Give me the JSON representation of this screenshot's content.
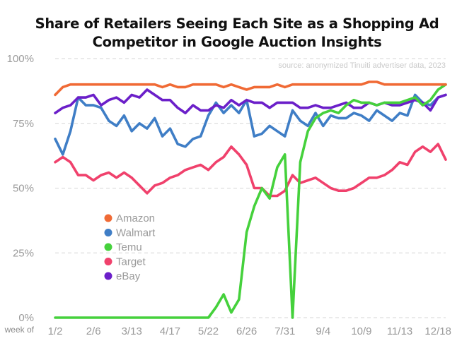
{
  "chart_data": {
    "type": "line",
    "title_line1": "Share of Retailers Seeing Each Site as a Shopping Ad",
    "title_line2": "Competitor in Google Auction Insights",
    "source": "source: anonymized Tinuiti advertiser data, 2023",
    "x_axis_caption": "week of",
    "x_ticks": [
      "1/2",
      "2/6",
      "3/13",
      "4/17",
      "5/22",
      "6/26",
      "7/31",
      "9/4",
      "10/9",
      "11/13",
      "12/18"
    ],
    "y_ticks": [
      "0%",
      "25%",
      "50%",
      "75%",
      "100%"
    ],
    "y_tick_values": [
      0,
      25,
      50,
      75,
      100
    ],
    "ylim": [
      0,
      100
    ],
    "xlim": [
      "1/2",
      "12/25"
    ],
    "grid": "horizontal dashed",
    "legend_position": "left-center",
    "series": [
      {
        "name": "Amazon",
        "color": "#f06a35",
        "points": [
          [
            "1/2",
            86
          ],
          [
            "1/9",
            89
          ],
          [
            "1/16",
            90
          ],
          [
            "1/23",
            90
          ],
          [
            "1/30",
            90
          ],
          [
            "2/6",
            90
          ],
          [
            "2/13",
            90
          ],
          [
            "2/20",
            90
          ],
          [
            "2/27",
            90
          ],
          [
            "3/6",
            90
          ],
          [
            "3/13",
            90
          ],
          [
            "3/20",
            90
          ],
          [
            "3/27",
            90
          ],
          [
            "4/3",
            90
          ],
          [
            "4/10",
            89
          ],
          [
            "4/17",
            90
          ],
          [
            "4/24",
            89
          ],
          [
            "5/1",
            89
          ],
          [
            "5/8",
            90
          ],
          [
            "5/15",
            90
          ],
          [
            "5/22",
            90
          ],
          [
            "5/29",
            90
          ],
          [
            "6/5",
            89
          ],
          [
            "6/12",
            90
          ],
          [
            "6/19",
            89
          ],
          [
            "6/26",
            88
          ],
          [
            "7/3",
            89
          ],
          [
            "7/10",
            89
          ],
          [
            "7/17",
            89
          ],
          [
            "7/24",
            90
          ],
          [
            "7/31",
            89
          ],
          [
            "8/7",
            90
          ],
          [
            "8/14",
            90
          ],
          [
            "8/21",
            90
          ],
          [
            "8/28",
            90
          ],
          [
            "9/4",
            90
          ],
          [
            "9/11",
            90
          ],
          [
            "9/18",
            90
          ],
          [
            "9/25",
            90
          ],
          [
            "10/2",
            90
          ],
          [
            "10/9",
            90
          ],
          [
            "10/16",
            91
          ],
          [
            "10/23",
            91
          ],
          [
            "10/30",
            90
          ],
          [
            "11/6",
            90
          ],
          [
            "11/13",
            90
          ],
          [
            "11/20",
            90
          ],
          [
            "11/27",
            90
          ],
          [
            "12/4",
            90
          ],
          [
            "12/11",
            90
          ],
          [
            "12/18",
            90
          ],
          [
            "12/25",
            90
          ]
        ]
      },
      {
        "name": "Walmart",
        "color": "#3f7ec6",
        "points": [
          [
            "1/2",
            69
          ],
          [
            "1/9",
            63
          ],
          [
            "1/16",
            72
          ],
          [
            "1/23",
            85
          ],
          [
            "1/30",
            82
          ],
          [
            "2/6",
            82
          ],
          [
            "2/13",
            81
          ],
          [
            "2/20",
            76
          ],
          [
            "2/27",
            74
          ],
          [
            "3/6",
            78
          ],
          [
            "3/13",
            72
          ],
          [
            "3/20",
            75
          ],
          [
            "3/27",
            73
          ],
          [
            "4/3",
            77
          ],
          [
            "4/10",
            70
          ],
          [
            "4/17",
            73
          ],
          [
            "4/24",
            67
          ],
          [
            "5/1",
            66
          ],
          [
            "5/8",
            69
          ],
          [
            "5/15",
            70
          ],
          [
            "5/22",
            78
          ],
          [
            "5/29",
            83
          ],
          [
            "6/5",
            79
          ],
          [
            "6/12",
            82
          ],
          [
            "6/19",
            79
          ],
          [
            "6/26",
            84
          ],
          [
            "7/3",
            70
          ],
          [
            "7/10",
            71
          ],
          [
            "7/17",
            74
          ],
          [
            "7/24",
            72
          ],
          [
            "7/31",
            70
          ],
          [
            "8/7",
            80
          ],
          [
            "8/14",
            76
          ],
          [
            "8/21",
            74
          ],
          [
            "8/28",
            79
          ],
          [
            "9/4",
            74
          ],
          [
            "9/11",
            78
          ],
          [
            "9/18",
            77
          ],
          [
            "9/25",
            77
          ],
          [
            "10/2",
            79
          ],
          [
            "10/9",
            78
          ],
          [
            "10/16",
            76
          ],
          [
            "10/23",
            80
          ],
          [
            "10/30",
            78
          ],
          [
            "11/6",
            76
          ],
          [
            "11/13",
            79
          ],
          [
            "11/20",
            78
          ],
          [
            "11/27",
            86
          ],
          [
            "12/4",
            83
          ],
          [
            "12/11",
            82
          ],
          [
            "12/18",
            85
          ],
          [
            "12/25",
            86
          ]
        ]
      },
      {
        "name": "Temu",
        "color": "#45d13c",
        "points": [
          [
            "1/2",
            0
          ],
          [
            "1/9",
            0
          ],
          [
            "1/16",
            0
          ],
          [
            "1/23",
            0
          ],
          [
            "1/30",
            0
          ],
          [
            "2/6",
            0
          ],
          [
            "2/13",
            0
          ],
          [
            "2/20",
            0
          ],
          [
            "2/27",
            0
          ],
          [
            "3/6",
            0
          ],
          [
            "3/13",
            0
          ],
          [
            "3/20",
            0
          ],
          [
            "3/27",
            0
          ],
          [
            "4/3",
            0
          ],
          [
            "4/10",
            0
          ],
          [
            "4/17",
            0
          ],
          [
            "4/24",
            0
          ],
          [
            "5/1",
            0
          ],
          [
            "5/8",
            0
          ],
          [
            "5/15",
            0
          ],
          [
            "5/22",
            0
          ],
          [
            "5/29",
            4
          ],
          [
            "6/5",
            9
          ],
          [
            "6/12",
            2
          ],
          [
            "6/19",
            7
          ],
          [
            "6/26",
            33
          ],
          [
            "7/3",
            43
          ],
          [
            "7/10",
            50
          ],
          [
            "7/17",
            46
          ],
          [
            "7/24",
            58
          ],
          [
            "7/31",
            63
          ],
          [
            "8/7",
            0
          ],
          [
            "8/14",
            60
          ],
          [
            "8/21",
            72
          ],
          [
            "8/28",
            77
          ],
          [
            "9/4",
            79
          ],
          [
            "9/11",
            80
          ],
          [
            "9/18",
            79
          ],
          [
            "9/25",
            82
          ],
          [
            "10/2",
            84
          ],
          [
            "10/9",
            83
          ],
          [
            "10/16",
            83
          ],
          [
            "10/23",
            82
          ],
          [
            "10/30",
            83
          ],
          [
            "11/6",
            83
          ],
          [
            "11/13",
            83
          ],
          [
            "11/20",
            84
          ],
          [
            "11/27",
            85
          ],
          [
            "12/4",
            82
          ],
          [
            "12/11",
            84
          ],
          [
            "12/18",
            88
          ],
          [
            "12/25",
            90
          ]
        ]
      },
      {
        "name": "Target",
        "color": "#f0416c",
        "points": [
          [
            "1/2",
            60
          ],
          [
            "1/9",
            62
          ],
          [
            "1/16",
            60
          ],
          [
            "1/23",
            55
          ],
          [
            "1/30",
            55
          ],
          [
            "2/6",
            53
          ],
          [
            "2/13",
            55
          ],
          [
            "2/20",
            56
          ],
          [
            "2/27",
            54
          ],
          [
            "3/6",
            56
          ],
          [
            "3/13",
            54
          ],
          [
            "3/20",
            51
          ],
          [
            "3/27",
            48
          ],
          [
            "4/3",
            51
          ],
          [
            "4/10",
            52
          ],
          [
            "4/17",
            54
          ],
          [
            "4/24",
            55
          ],
          [
            "5/1",
            57
          ],
          [
            "5/8",
            58
          ],
          [
            "5/15",
            59
          ],
          [
            "5/22",
            57
          ],
          [
            "5/29",
            60
          ],
          [
            "6/5",
            62
          ],
          [
            "6/12",
            66
          ],
          [
            "6/19",
            63
          ],
          [
            "6/26",
            59
          ],
          [
            "7/3",
            50
          ],
          [
            "7/10",
            50
          ],
          [
            "7/17",
            47
          ],
          [
            "7/24",
            47
          ],
          [
            "7/31",
            49
          ],
          [
            "8/7",
            55
          ],
          [
            "8/14",
            52
          ],
          [
            "8/21",
            53
          ],
          [
            "8/28",
            54
          ],
          [
            "9/4",
            52
          ],
          [
            "9/11",
            50
          ],
          [
            "9/18",
            49
          ],
          [
            "9/25",
            49
          ],
          [
            "10/2",
            50
          ],
          [
            "10/9",
            52
          ],
          [
            "10/16",
            54
          ],
          [
            "10/23",
            54
          ],
          [
            "10/30",
            55
          ],
          [
            "11/6",
            57
          ],
          [
            "11/13",
            60
          ],
          [
            "11/20",
            59
          ],
          [
            "11/27",
            64
          ],
          [
            "12/4",
            66
          ],
          [
            "12/11",
            64
          ],
          [
            "12/18",
            67
          ],
          [
            "12/25",
            61
          ]
        ]
      },
      {
        "name": "eBay",
        "color": "#6b1fc9",
        "points": [
          [
            "1/2",
            79
          ],
          [
            "1/9",
            81
          ],
          [
            "1/16",
            82
          ],
          [
            "1/23",
            85
          ],
          [
            "1/30",
            85
          ],
          [
            "2/6",
            86
          ],
          [
            "2/13",
            82
          ],
          [
            "2/20",
            84
          ],
          [
            "2/27",
            85
          ],
          [
            "3/6",
            83
          ],
          [
            "3/13",
            86
          ],
          [
            "3/20",
            85
          ],
          [
            "3/27",
            88
          ],
          [
            "4/3",
            86
          ],
          [
            "4/10",
            84
          ],
          [
            "4/17",
            84
          ],
          [
            "4/24",
            81
          ],
          [
            "5/1",
            79
          ],
          [
            "5/8",
            82
          ],
          [
            "5/15",
            80
          ],
          [
            "5/22",
            80
          ],
          [
            "5/29",
            82
          ],
          [
            "6/5",
            81
          ],
          [
            "6/12",
            84
          ],
          [
            "6/19",
            82
          ],
          [
            "6/26",
            84
          ],
          [
            "7/3",
            83
          ],
          [
            "7/10",
            83
          ],
          [
            "7/17",
            81
          ],
          [
            "7/24",
            83
          ],
          [
            "7/31",
            83
          ],
          [
            "8/7",
            83
          ],
          [
            "8/14",
            81
          ],
          [
            "8/21",
            81
          ],
          [
            "8/28",
            82
          ],
          [
            "9/4",
            81
          ],
          [
            "9/11",
            81
          ],
          [
            "9/18",
            82
          ],
          [
            "9/25",
            83
          ],
          [
            "10/2",
            81
          ],
          [
            "10/9",
            81
          ],
          [
            "10/16",
            83
          ],
          [
            "10/23",
            82
          ],
          [
            "10/30",
            83
          ],
          [
            "11/6",
            82
          ],
          [
            "11/13",
            82
          ],
          [
            "11/20",
            83
          ],
          [
            "11/27",
            84
          ],
          [
            "12/4",
            83
          ],
          [
            "12/11",
            80
          ],
          [
            "12/18",
            85
          ],
          [
            "12/25",
            86
          ]
        ]
      }
    ]
  }
}
